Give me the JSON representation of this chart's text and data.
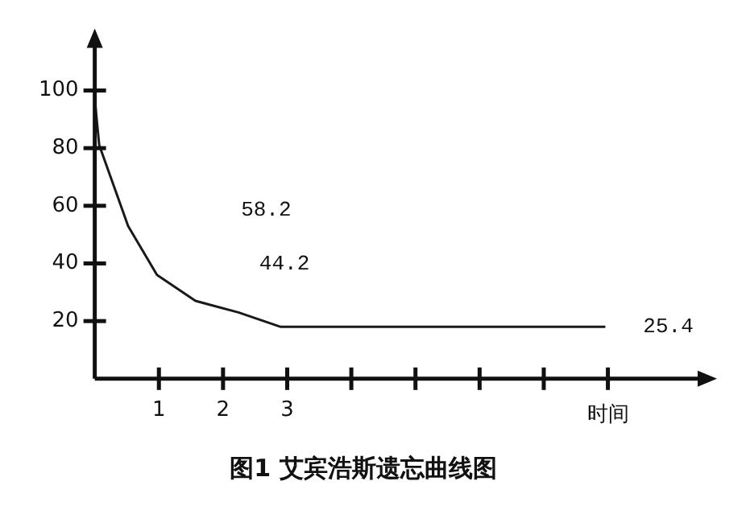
{
  "chart_data": {
    "type": "line",
    "title": "图1 艾宾浩斯遗忘曲线图",
    "xlabel": "时间",
    "x": [
      0,
      0.07,
      0.52,
      0.97,
      1.57,
      2.24,
      2.9,
      7.96
    ],
    "series": [
      {
        "color": "#1a1a1a",
        "values": [
          97,
          81,
          53,
          36,
          27,
          23,
          18,
          18
        ]
      }
    ],
    "xlim": [
      0,
      9.5
    ],
    "ylim": [
      0,
      117
    ],
    "xticks": [
      1,
      2,
      3,
      {
        "value": 4,
        "label": null
      },
      {
        "value": 5,
        "label": null
      },
      {
        "value": 6,
        "label": null
      },
      {
        "value": 7,
        "label": null
      },
      {
        "value": 8,
        "label": null
      }
    ],
    "yticks": [
      20,
      40,
      60,
      80,
      100
    ],
    "annotations": [
      "58.2",
      "44.2",
      "25.4"
    ],
    "grid": false,
    "legend": false,
    "marker": "none",
    "line_style": "solid"
  }
}
